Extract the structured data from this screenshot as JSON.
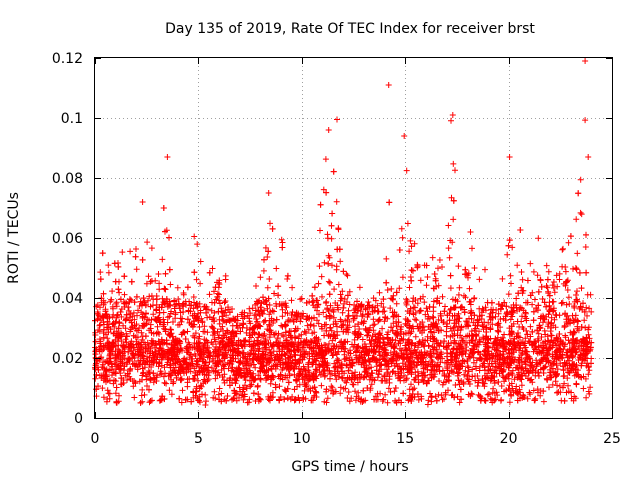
{
  "chart_data": {
    "type": "scatter",
    "title": "Day 135 of 2019, Rate Of TEC Index for receiver brst",
    "xlabel": "GPS time / hours",
    "ylabel": "ROTI / TECUs",
    "xlim": [
      0,
      25
    ],
    "ylim": [
      0,
      0.12
    ],
    "x_ticks": [
      0,
      5,
      10,
      15,
      20,
      25
    ],
    "x_tick_labels": [
      "0",
      "5",
      "10",
      "15",
      "20",
      "25"
    ],
    "y_ticks": [
      0,
      0.02,
      0.04,
      0.06,
      0.08,
      0.1,
      0.12
    ],
    "y_tick_labels": [
      "0",
      "0.02",
      "0.04",
      "0.06",
      "0.08",
      "0.1",
      "0.12"
    ],
    "grid": true,
    "marker": "plus",
    "series": [
      {
        "name": "ROTI",
        "color": "#ff0000",
        "x": [
          0.0,
          0.2,
          0.4,
          0.6,
          0.8,
          1.0,
          1.2,
          1.4,
          1.6,
          1.8,
          2.0,
          2.2,
          2.4,
          2.6,
          2.8,
          3.0,
          3.2,
          3.4,
          3.6,
          3.8,
          4.0,
          4.2,
          4.4,
          4.6,
          4.8,
          5.0,
          5.2,
          5.4,
          5.6,
          5.8,
          6.0,
          6.2,
          6.4,
          6.6,
          6.8,
          7.0,
          7.2,
          7.4,
          7.6,
          7.8,
          8.0,
          8.2,
          8.4,
          8.6,
          8.8,
          9.0,
          9.2,
          9.4,
          9.6,
          9.8,
          10.0,
          10.2,
          10.4,
          10.6,
          10.8,
          11.0,
          11.2,
          11.4,
          11.6,
          11.8,
          12.0,
          12.2,
          12.4,
          12.6,
          12.8,
          13.0,
          13.2,
          13.4,
          13.6,
          13.8,
          14.0,
          14.2,
          14.4,
          14.6,
          14.8,
          15.0,
          15.2,
          15.4,
          15.6,
          15.8,
          16.0,
          16.2,
          16.4,
          16.6,
          16.8,
          17.0,
          17.2,
          17.4,
          17.6,
          17.8,
          18.0,
          18.2,
          18.4,
          18.6,
          18.8,
          19.0,
          19.2,
          19.4,
          19.6,
          19.8,
          20.0,
          20.2,
          20.4,
          20.6,
          20.8,
          21.0,
          21.2,
          21.4,
          21.6,
          21.8,
          22.0,
          22.2,
          22.4,
          22.6,
          22.8,
          23.0,
          23.2,
          23.4,
          23.6,
          23.8,
          24.0
        ],
        "envelope_max": [
          0.035,
          0.048,
          0.058,
          0.055,
          0.052,
          0.057,
          0.06,
          0.058,
          0.065,
          0.055,
          0.066,
          0.072,
          0.065,
          0.062,
          0.058,
          0.06,
          0.068,
          0.087,
          0.06,
          0.05,
          0.045,
          0.042,
          0.05,
          0.048,
          0.062,
          0.058,
          0.05,
          0.053,
          0.056,
          0.06,
          0.052,
          0.05,
          0.047,
          0.04,
          0.035,
          0.034,
          0.036,
          0.035,
          0.04,
          0.045,
          0.048,
          0.055,
          0.075,
          0.063,
          0.05,
          0.065,
          0.062,
          0.062,
          0.04,
          0.035,
          0.045,
          0.038,
          0.042,
          0.052,
          0.068,
          0.082,
          0.096,
          0.085,
          0.099,
          0.086,
          0.06,
          0.055,
          0.05,
          0.048,
          0.046,
          0.05,
          0.045,
          0.048,
          0.058,
          0.05,
          0.065,
          0.111,
          0.06,
          0.055,
          0.058,
          0.094,
          0.075,
          0.06,
          0.055,
          0.05,
          0.054,
          0.064,
          0.06,
          0.055,
          0.058,
          0.06,
          0.1,
          0.088,
          0.07,
          0.06,
          0.068,
          0.062,
          0.05,
          0.048,
          0.052,
          0.045,
          0.04,
          0.038,
          0.05,
          0.048,
          0.087,
          0.055,
          0.05,
          0.066,
          0.055,
          0.05,
          0.065,
          0.066,
          0.05,
          0.062,
          0.06,
          0.06,
          0.06,
          0.074,
          0.07,
          0.06,
          0.072,
          0.119,
          0.099,
          0.065,
          0.058
        ],
        "envelope_min": [
          0.008,
          0.006,
          0.006,
          0.005,
          0.005,
          0.005,
          0.005,
          0.005,
          0.006,
          0.005,
          0.005,
          0.005,
          0.006,
          0.005,
          0.006,
          0.005,
          0.006,
          0.006,
          0.005,
          0.006,
          0.006,
          0.005,
          0.006,
          0.005,
          0.006,
          0.005,
          0.005,
          0.004,
          0.006,
          0.005,
          0.006,
          0.005,
          0.006,
          0.006,
          0.005,
          0.006,
          0.006,
          0.005,
          0.006,
          0.005,
          0.006,
          0.005,
          0.006,
          0.005,
          0.005,
          0.006,
          0.005,
          0.006,
          0.006,
          0.005,
          0.006,
          0.005,
          0.006,
          0.005,
          0.006,
          0.005,
          0.005,
          0.006,
          0.005,
          0.006,
          0.005,
          0.006,
          0.005,
          0.006,
          0.005,
          0.005,
          0.006,
          0.005,
          0.006,
          0.005,
          0.005,
          0.005,
          0.006,
          0.005,
          0.005,
          0.005,
          0.006,
          0.005,
          0.006,
          0.006,
          0.004,
          0.005,
          0.006,
          0.005,
          0.006,
          0.005,
          0.005,
          0.006,
          0.005,
          0.006,
          0.005,
          0.006,
          0.005,
          0.006,
          0.005,
          0.006,
          0.005,
          0.006,
          0.005,
          0.006,
          0.005,
          0.005,
          0.006,
          0.005,
          0.006,
          0.005,
          0.006,
          0.005,
          0.006,
          0.005,
          0.006,
          0.005,
          0.006,
          0.005,
          0.006,
          0.005,
          0.006,
          0.005,
          0.006,
          0.007,
          0.009
        ],
        "notable_points": [
          {
            "x": 14.2,
            "y": 0.111
          },
          {
            "x": 23.7,
            "y": 0.119
          },
          {
            "x": 17.3,
            "y": 0.101
          },
          {
            "x": 11.7,
            "y": 0.0995
          },
          {
            "x": 23.7,
            "y": 0.0993
          },
          {
            "x": 11.3,
            "y": 0.096
          },
          {
            "x": 14.95,
            "y": 0.094
          },
          {
            "x": 20.05,
            "y": 0.087
          },
          {
            "x": 3.5,
            "y": 0.087
          },
          {
            "x": 23.85,
            "y": 0.087
          },
          {
            "x": 8.4,
            "y": 0.075
          },
          {
            "x": 2.3,
            "y": 0.072
          }
        ]
      }
    ]
  }
}
